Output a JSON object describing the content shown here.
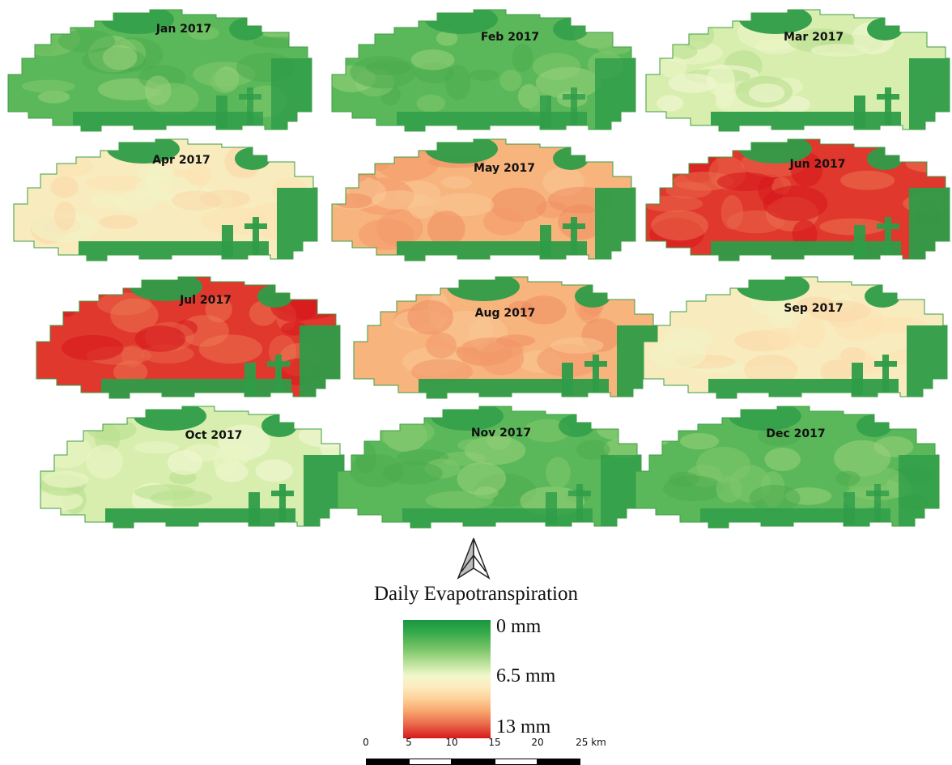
{
  "panels": [
    {
      "label": "Jan 2017",
      "et_level": "low"
    },
    {
      "label": "Feb 2017",
      "et_level": "low"
    },
    {
      "label": "Mar 2017",
      "et_level": "low-medium"
    },
    {
      "label": "Apr 2017",
      "et_level": "medium"
    },
    {
      "label": "May 2017",
      "et_level": "high"
    },
    {
      "label": "Jun 2017",
      "et_level": "very-high"
    },
    {
      "label": "Jul 2017",
      "et_level": "very-high"
    },
    {
      "label": "Aug 2017",
      "et_level": "high"
    },
    {
      "label": "Sep 2017",
      "et_level": "medium"
    },
    {
      "label": "Oct 2017",
      "et_level": "low-medium"
    },
    {
      "label": "Nov 2017",
      "et_level": "low"
    },
    {
      "label": "Dec 2017",
      "et_level": "low"
    }
  ],
  "legend": {
    "title": "Daily Evapotranspiration",
    "labels": [
      "0 mm",
      "6.5 mm",
      "13 mm"
    ],
    "colors": [
      "#1a9641",
      "#f5f7cd",
      "#d7191c"
    ]
  },
  "north_arrow": {
    "icon": "north-arrow-icon"
  },
  "scalebar": {
    "labels": [
      "0",
      "5",
      "10",
      "15",
      "20",
      "25 km"
    ]
  }
}
